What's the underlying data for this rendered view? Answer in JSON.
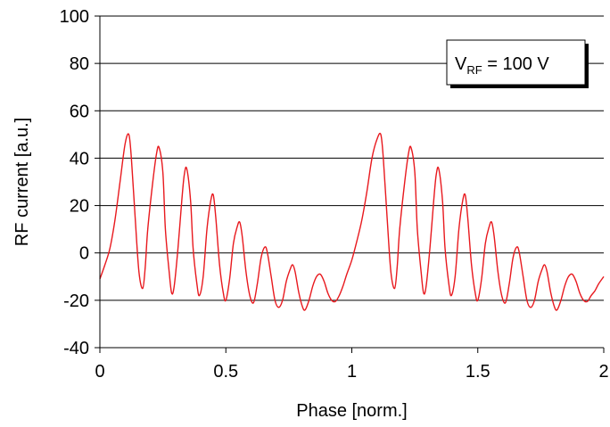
{
  "chart_data": {
    "type": "line",
    "title": "",
    "xlabel": "Phase [norm.]",
    "ylabel": "RF current [a.u.]",
    "xlim": [
      0,
      2
    ],
    "ylim": [
      -40,
      100
    ],
    "x_ticks": [
      "0",
      "0.5",
      "1",
      "1.5",
      "2"
    ],
    "y_ticks": [
      "-40",
      "-20",
      "0",
      "20",
      "40",
      "60",
      "80",
      "100"
    ],
    "grid": "horizontal",
    "annotation": {
      "main": "V",
      "sub": "RF",
      "rest": " = 100 V",
      "placement": "top-right"
    },
    "series": [
      {
        "color": "#e8191e",
        "points": [
          [
            0.0,
            -11
          ],
          [
            0.02,
            -5
          ],
          [
            0.04,
            2
          ],
          [
            0.06,
            14
          ],
          [
            0.08,
            30
          ],
          [
            0.1,
            46
          ],
          [
            0.115,
            50
          ],
          [
            0.125,
            40
          ],
          [
            0.14,
            15
          ],
          [
            0.155,
            -8
          ],
          [
            0.17,
            -15
          ],
          [
            0.18,
            -6
          ],
          [
            0.19,
            10
          ],
          [
            0.21,
            30
          ],
          [
            0.225,
            42
          ],
          [
            0.235,
            44.5
          ],
          [
            0.25,
            34
          ],
          [
            0.26,
            10
          ],
          [
            0.275,
            -8
          ],
          [
            0.285,
            -17
          ],
          [
            0.295,
            -14
          ],
          [
            0.31,
            2
          ],
          [
            0.325,
            22
          ],
          [
            0.335,
            33
          ],
          [
            0.345,
            35.5
          ],
          [
            0.36,
            22
          ],
          [
            0.37,
            2
          ],
          [
            0.385,
            -13
          ],
          [
            0.395,
            -18
          ],
          [
            0.41,
            -10
          ],
          [
            0.425,
            10
          ],
          [
            0.44,
            22
          ],
          [
            0.45,
            24.5
          ],
          [
            0.46,
            15
          ],
          [
            0.475,
            -5
          ],
          [
            0.49,
            -17
          ],
          [
            0.5,
            -20
          ],
          [
            0.515,
            -11
          ],
          [
            0.53,
            4
          ],
          [
            0.545,
            11
          ],
          [
            0.555,
            13
          ],
          [
            0.565,
            7
          ],
          [
            0.58,
            -8
          ],
          [
            0.595,
            -18
          ],
          [
            0.61,
            -21
          ],
          [
            0.625,
            -13
          ],
          [
            0.64,
            -2
          ],
          [
            0.655,
            2.5
          ],
          [
            0.665,
            0
          ],
          [
            0.68,
            -10
          ],
          [
            0.695,
            -20
          ],
          [
            0.71,
            -23
          ],
          [
            0.725,
            -20
          ],
          [
            0.74,
            -12
          ],
          [
            0.755,
            -7
          ],
          [
            0.765,
            -5
          ],
          [
            0.775,
            -8
          ],
          [
            0.79,
            -17
          ],
          [
            0.805,
            -23
          ],
          [
            0.815,
            -24
          ],
          [
            0.83,
            -20
          ],
          [
            0.845,
            -14
          ],
          [
            0.86,
            -10
          ],
          [
            0.875,
            -9
          ],
          [
            0.89,
            -12
          ],
          [
            0.905,
            -17
          ],
          [
            0.92,
            -20
          ],
          [
            0.935,
            -20.5
          ],
          [
            0.95,
            -18
          ],
          [
            0.965,
            -14
          ],
          [
            0.98,
            -9
          ],
          [
            1.0,
            -3
          ],
          [
            1.02,
            5
          ],
          [
            1.04,
            14
          ],
          [
            1.06,
            26
          ],
          [
            1.08,
            40
          ],
          [
            1.1,
            48
          ],
          [
            1.115,
            50
          ],
          [
            1.125,
            40
          ],
          [
            1.14,
            15
          ],
          [
            1.155,
            -8
          ],
          [
            1.17,
            -15
          ],
          [
            1.18,
            -6
          ],
          [
            1.19,
            10
          ],
          [
            1.21,
            30
          ],
          [
            1.225,
            42
          ],
          [
            1.235,
            44.5
          ],
          [
            1.25,
            34
          ],
          [
            1.26,
            10
          ],
          [
            1.275,
            -8
          ],
          [
            1.285,
            -17
          ],
          [
            1.295,
            -14
          ],
          [
            1.31,
            2
          ],
          [
            1.325,
            22
          ],
          [
            1.335,
            33
          ],
          [
            1.345,
            35.5
          ],
          [
            1.36,
            22
          ],
          [
            1.37,
            2
          ],
          [
            1.385,
            -13
          ],
          [
            1.395,
            -18
          ],
          [
            1.41,
            -10
          ],
          [
            1.425,
            10
          ],
          [
            1.44,
            22
          ],
          [
            1.45,
            24.5
          ],
          [
            1.46,
            15
          ],
          [
            1.475,
            -5
          ],
          [
            1.49,
            -17
          ],
          [
            1.5,
            -20
          ],
          [
            1.515,
            -11
          ],
          [
            1.53,
            4
          ],
          [
            1.545,
            11
          ],
          [
            1.555,
            13
          ],
          [
            1.565,
            7
          ],
          [
            1.58,
            -8
          ],
          [
            1.595,
            -18
          ],
          [
            1.61,
            -21
          ],
          [
            1.625,
            -13
          ],
          [
            1.64,
            -2
          ],
          [
            1.655,
            2.5
          ],
          [
            1.665,
            0
          ],
          [
            1.68,
            -10
          ],
          [
            1.695,
            -20
          ],
          [
            1.71,
            -23
          ],
          [
            1.725,
            -20
          ],
          [
            1.74,
            -12
          ],
          [
            1.755,
            -7
          ],
          [
            1.765,
            -5
          ],
          [
            1.775,
            -8
          ],
          [
            1.79,
            -17
          ],
          [
            1.805,
            -23
          ],
          [
            1.815,
            -24
          ],
          [
            1.83,
            -20
          ],
          [
            1.845,
            -14
          ],
          [
            1.86,
            -10
          ],
          [
            1.875,
            -9
          ],
          [
            1.89,
            -12
          ],
          [
            1.905,
            -17
          ],
          [
            1.92,
            -20
          ],
          [
            1.935,
            -20.5
          ],
          [
            1.95,
            -18
          ],
          [
            1.965,
            -16
          ],
          [
            1.98,
            -13
          ],
          [
            2.0,
            -10
          ]
        ]
      }
    ]
  }
}
